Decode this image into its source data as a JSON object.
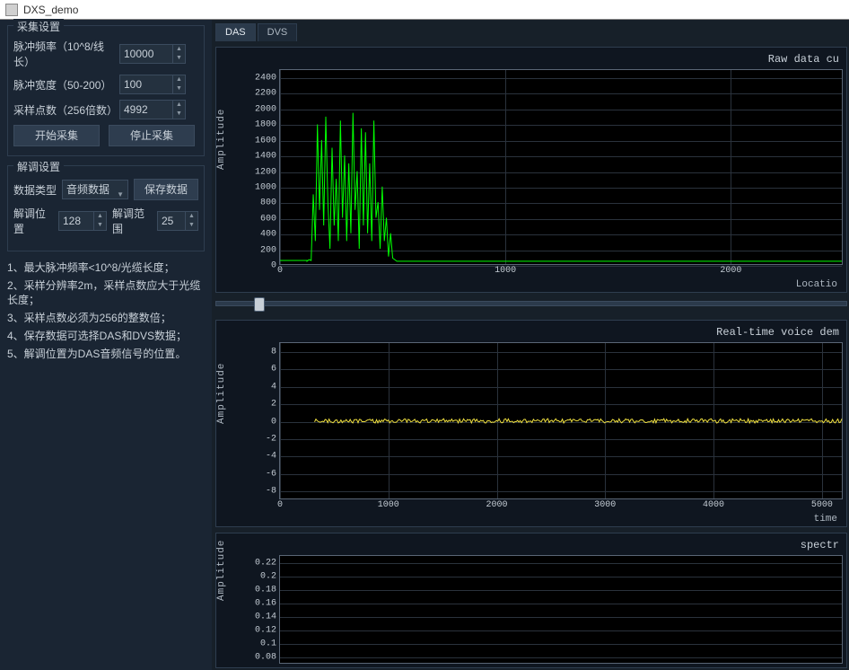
{
  "window": {
    "title": "DXS_demo"
  },
  "sidebar": {
    "acq": {
      "title": "采集设置",
      "pulse_freq_label": "脉冲频率（10^8/线长）",
      "pulse_freq_value": "10000",
      "pulse_width_label": "脉冲宽度（50-200）",
      "pulse_width_value": "100",
      "samples_label": "采样点数（256倍数）",
      "samples_value": "4992",
      "start_btn": "开始采集",
      "stop_btn": "停止采集"
    },
    "demod": {
      "title": "解调设置",
      "data_type_label": "数据类型",
      "data_type_value": "音频数据",
      "save_btn": "保存数据",
      "pos_label": "解调位置",
      "pos_value": "128",
      "range_label": "解调范围",
      "range_value": "25"
    },
    "notes": [
      "1、最大脉冲频率<10^8/光缆长度；",
      "2、采样分辨率2m，采样点数应大于光缆长度；",
      "3、采样点数必须为256的整数倍；",
      "4、保存数据可选择DAS和DVS数据；",
      "5、解调位置为DAS音频信号的位置。"
    ]
  },
  "tabs": [
    {
      "label": "DAS",
      "active": true
    },
    {
      "label": "DVS",
      "active": false
    }
  ],
  "chart1": {
    "title": "Raw data cu",
    "ylabel": "Amplitude",
    "xlabel": "Locatio",
    "yticks": [
      0,
      200,
      400,
      600,
      800,
      1000,
      1200,
      1400,
      1600,
      1800,
      2000,
      2200,
      2400
    ],
    "xticks": [
      0,
      1000,
      2000
    ],
    "ylim": [
      0,
      2500
    ],
    "xlim": [
      0,
      2500
    ],
    "line_color": "#00ff00",
    "grid_color": "#2a323c",
    "bg": "#000000",
    "data_x0": 120,
    "data_x1": 520,
    "heights": [
      40,
      60,
      50,
      900,
      300,
      1800,
      700,
      1600,
      500,
      1900,
      800,
      200,
      1500,
      500,
      1100,
      300,
      1850,
      600,
      1400,
      300,
      1300,
      400,
      1950,
      700,
      1200,
      200,
      1750,
      500,
      1700,
      400,
      1300,
      300,
      1850,
      600,
      800,
      200,
      1000,
      300,
      600,
      100,
      400,
      80,
      60,
      40
    ]
  },
  "slider": {
    "pos_pct": 6
  },
  "chart2": {
    "title": "Real-time voice dem",
    "ylabel": "Amplitude",
    "xlabel": "time",
    "yticks": [
      -8,
      -6,
      -4,
      -2,
      0,
      2,
      4,
      6,
      8
    ],
    "xticks": [
      0,
      1000,
      2000,
      3000,
      4000,
      5000
    ],
    "ylim": [
      -9,
      9
    ],
    "xlim": [
      0,
      5200
    ],
    "line_color": "#f0e040",
    "grid_color": "#2a323c",
    "bg": "#000000",
    "data_start_x": 320,
    "noise_amp": 0.25
  },
  "chart3": {
    "title": "spectr",
    "ylabel": "Amplitude",
    "yticks": [
      0.08,
      0.1,
      0.12,
      0.14,
      0.16,
      0.18,
      0.2,
      0.22
    ],
    "ylim": [
      0.07,
      0.23
    ],
    "line_color": "#00d0ff",
    "grid_color": "#2a323c",
    "bg": "#000000"
  }
}
